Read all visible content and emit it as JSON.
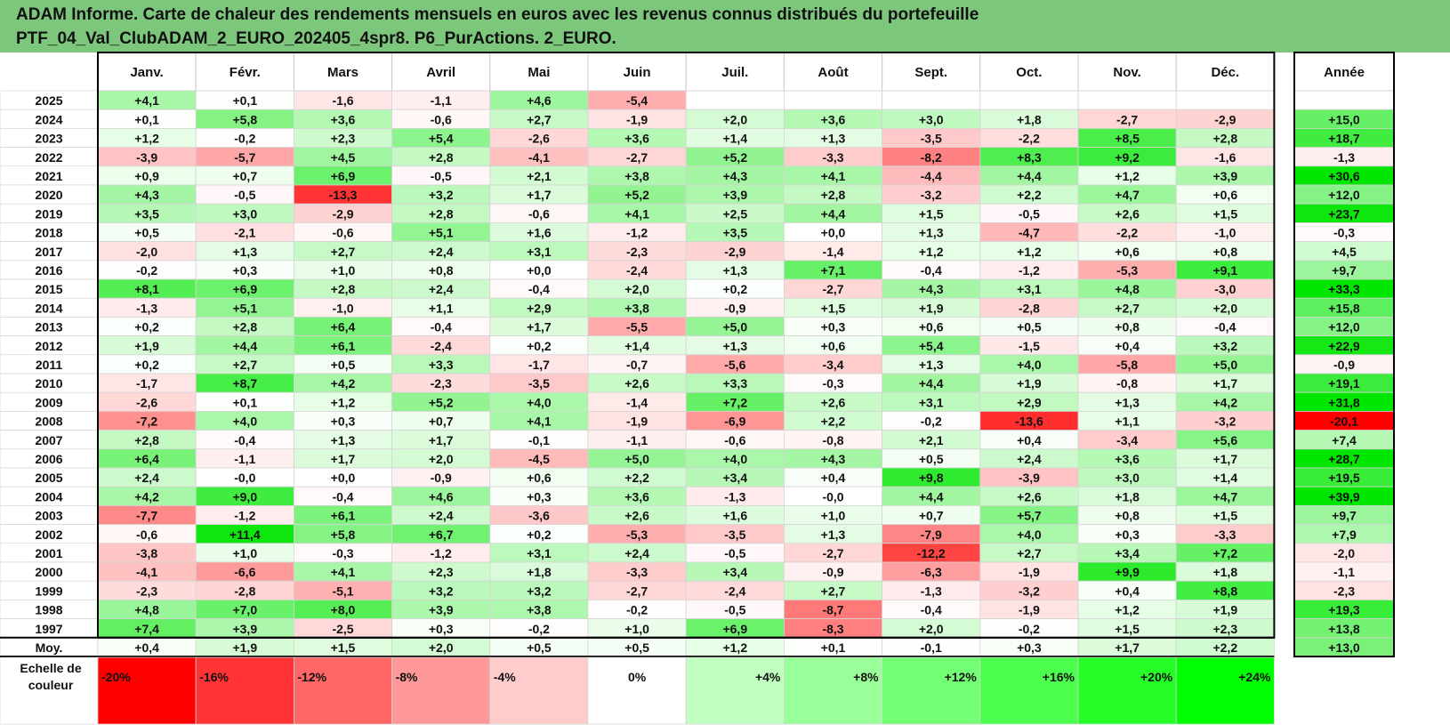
{
  "title": {
    "line1": "ADAM Informe. Carte de chaleur des rendements mensuels en euros avec les revenus connus distribués du portefeuille",
    "line2": "PTF_04_Val_ClubADAM_2_EURO_202405_4spr8. P6_PurActions. 2_EURO."
  },
  "chart_data": {
    "type": "heatmap",
    "months": [
      "Janv.",
      "Févr.",
      "Mars",
      "Avril",
      "Mai",
      "Juin",
      "Juil.",
      "Août",
      "Sept.",
      "Oct.",
      "Nov.",
      "Déc."
    ],
    "year_header": "Année",
    "years": [
      "2025",
      "2024",
      "2023",
      "2022",
      "2021",
      "2020",
      "2019",
      "2018",
      "2017",
      "2016",
      "2015",
      "2014",
      "2013",
      "2012",
      "2011",
      "2010",
      "2009",
      "2008",
      "2007",
      "2006",
      "2005",
      "2004",
      "2003",
      "2002",
      "2001",
      "2000",
      "1999",
      "1998",
      "1997"
    ],
    "monthly": [
      [
        "+4,1",
        "+0,1",
        "-1,6",
        "-1,1",
        "+4,6",
        "-5,4",
        "",
        "",
        "",
        "",
        "",
        ""
      ],
      [
        "+0,1",
        "+5,8",
        "+3,6",
        "-0,6",
        "+2,7",
        "-1,9",
        "+2,0",
        "+3,6",
        "+3,0",
        "+1,8",
        "-2,7",
        "-2,9"
      ],
      [
        "+1,2",
        "-0,2",
        "+2,3",
        "+5,4",
        "-2,6",
        "+3,6",
        "+1,4",
        "+1,3",
        "-3,5",
        "-2,2",
        "+8,5",
        "+2,8"
      ],
      [
        "-3,9",
        "-5,7",
        "+4,5",
        "+2,8",
        "-4,1",
        "-2,7",
        "+5,2",
        "-3,3",
        "-8,2",
        "+8,3",
        "+9,2",
        "-1,6"
      ],
      [
        "+0,9",
        "+0,7",
        "+6,9",
        "-0,5",
        "+2,1",
        "+3,8",
        "+4,3",
        "+4,1",
        "-4,4",
        "+4,4",
        "+1,2",
        "+3,9"
      ],
      [
        "+4,3",
        "-0,5",
        "-13,3",
        "+3,2",
        "+1,7",
        "+5,2",
        "+3,9",
        "+2,8",
        "-3,2",
        "+2,2",
        "+4,7",
        "+0,6"
      ],
      [
        "+3,5",
        "+3,0",
        "-2,9",
        "+2,8",
        "-0,6",
        "+4,1",
        "+2,5",
        "+4,4",
        "+1,5",
        "-0,5",
        "+2,6",
        "+1,5"
      ],
      [
        "+0,5",
        "-2,1",
        "-0,6",
        "+5,1",
        "+1,6",
        "-1,2",
        "+3,5",
        "+0,0",
        "+1,3",
        "-4,7",
        "-2,2",
        "-1,0"
      ],
      [
        "-2,0",
        "+1,3",
        "+2,7",
        "+2,4",
        "+3,1",
        "-2,3",
        "-2,9",
        "-1,4",
        "+1,2",
        "+1,2",
        "+0,6",
        "+0,8"
      ],
      [
        "-0,2",
        "+0,3",
        "+1,0",
        "+0,8",
        "+0,0",
        "-2,4",
        "+1,3",
        "+7,1",
        "-0,4",
        "-1,2",
        "-5,3",
        "+9,1"
      ],
      [
        "+8,1",
        "+6,9",
        "+2,8",
        "+2,4",
        "-0,4",
        "+2,0",
        "+0,2",
        "-2,7",
        "+4,3",
        "+3,1",
        "+4,8",
        "-3,0"
      ],
      [
        "-1,3",
        "+5,1",
        "-1,0",
        "+1,1",
        "+2,9",
        "+3,8",
        "-0,9",
        "+1,5",
        "+1,9",
        "-2,8",
        "+2,7",
        "+2,0"
      ],
      [
        "+0,2",
        "+2,8",
        "+6,4",
        "-0,4",
        "+1,7",
        "-5,5",
        "+5,0",
        "+0,3",
        "+0,6",
        "+0,5",
        "+0,8",
        "-0,4"
      ],
      [
        "+1,9",
        "+4,4",
        "+6,1",
        "-2,4",
        "+0,2",
        "+1,4",
        "+1,3",
        "+0,6",
        "+5,4",
        "-1,5",
        "+0,4",
        "+3,2"
      ],
      [
        "+0,2",
        "+2,7",
        "+0,5",
        "+3,3",
        "-1,7",
        "-0,7",
        "-5,6",
        "-3,4",
        "+1,3",
        "+4,0",
        "-5,8",
        "+5,0"
      ],
      [
        "-1,7",
        "+8,7",
        "+4,2",
        "-2,3",
        "-3,5",
        "+2,6",
        "+3,3",
        "-0,3",
        "+4,4",
        "+1,9",
        "-0,8",
        "+1,7"
      ],
      [
        "-2,6",
        "+0,1",
        "+1,2",
        "+5,2",
        "+4,0",
        "-1,4",
        "+7,2",
        "+2,6",
        "+3,1",
        "+2,9",
        "+1,3",
        "+4,2"
      ],
      [
        "-7,2",
        "+4,0",
        "+0,3",
        "+0,7",
        "+4,1",
        "-1,9",
        "-6,9",
        "+2,2",
        "-0,2",
        "-13,6",
        "+1,1",
        "-3,2"
      ],
      [
        "+2,8",
        "-0,4",
        "+1,3",
        "+1,7",
        "-0,1",
        "-1,1",
        "-0,6",
        "-0,8",
        "+2,1",
        "+0,4",
        "-3,4",
        "+5,6"
      ],
      [
        "+6,4",
        "-1,1",
        "+1,7",
        "+2,0",
        "-4,5",
        "+5,0",
        "+4,0",
        "+4,3",
        "+0,5",
        "+2,4",
        "+3,6",
        "+1,7"
      ],
      [
        "+2,4",
        "-0,0",
        "+0,0",
        "-0,9",
        "+0,6",
        "+2,2",
        "+3,4",
        "+0,4",
        "+9,8",
        "-3,9",
        "+3,0",
        "+1,4"
      ],
      [
        "+4,2",
        "+9,0",
        "-0,4",
        "+4,6",
        "+0,3",
        "+3,6",
        "-1,3",
        "-0,0",
        "+4,4",
        "+2,6",
        "+1,8",
        "+4,7"
      ],
      [
        "-7,7",
        "-1,2",
        "+6,1",
        "+2,4",
        "-3,6",
        "+2,6",
        "+1,6",
        "+1,0",
        "+0,7",
        "+5,7",
        "+0,8",
        "+1,5"
      ],
      [
        "-0,6",
        "+11,4",
        "+5,8",
        "+6,7",
        "+0,2",
        "-5,3",
        "-3,5",
        "+1,3",
        "-7,9",
        "+4,0",
        "+0,3",
        "-3,3"
      ],
      [
        "-3,8",
        "+1,0",
        "-0,3",
        "-1,2",
        "+3,1",
        "+2,4",
        "-0,5",
        "-2,7",
        "-12,2",
        "+2,7",
        "+3,4",
        "+7,2"
      ],
      [
        "-4,1",
        "-6,6",
        "+4,1",
        "+2,3",
        "+1,8",
        "-3,3",
        "+3,4",
        "-0,9",
        "-6,3",
        "-1,9",
        "+9,9",
        "+1,8"
      ],
      [
        "-2,3",
        "-2,8",
        "-5,1",
        "+3,2",
        "+3,2",
        "-2,7",
        "-2,4",
        "+2,7",
        "-1,3",
        "-3,2",
        "+0,4",
        "+8,8"
      ],
      [
        "+4,8",
        "+7,0",
        "+8,0",
        "+3,9",
        "+3,8",
        "-0,2",
        "-0,5",
        "-8,7",
        "-0,4",
        "-1,9",
        "+1,2",
        "+1,9"
      ],
      [
        "+7,4",
        "+3,9",
        "-2,5",
        "+0,3",
        "-0,2",
        "+1,0",
        "+6,9",
        "-8,3",
        "+2,0",
        "-0,2",
        "+1,5",
        "+2,3"
      ]
    ],
    "annual": [
      "",
      "+15,0",
      "+18,7",
      "-1,3",
      "+30,6",
      "+12,0",
      "+23,7",
      "-0,3",
      "+4,5",
      "+9,7",
      "+33,3",
      "+15,8",
      "+12,0",
      "+22,9",
      "-0,9",
      "+19,1",
      "+31,8",
      "-20,1",
      "+7,4",
      "+28,7",
      "+19,5",
      "+39,9",
      "+9,7",
      "+7,9",
      "-2,0",
      "-1,1",
      "-2,3",
      "+19,3",
      "+13,8"
    ],
    "avg_label": "Moy.",
    "avg_monthly": [
      "+0,4",
      "+1,9",
      "+1,5",
      "+2,0",
      "+0,5",
      "+0,5",
      "+1,2",
      "+0,1",
      "-0,1",
      "+0,3",
      "+1,7",
      "+2,2"
    ],
    "avg_annual": "+13,0",
    "scale_label": [
      "Echelle de",
      "couleur"
    ],
    "scale_values": [
      "-20%",
      "-16%",
      "-12%",
      "-8%",
      "-4%",
      "0%",
      "+4%",
      "+8%",
      "+12%",
      "+16%",
      "+20%",
      "+24%"
    ],
    "scale_numeric": [
      -20,
      -16,
      -12,
      -8,
      -4,
      0,
      4,
      8,
      12,
      16,
      20,
      24
    ],
    "colors": {
      "title_band": "#7dc77d",
      "negative_max": "#ff0000",
      "positive_max": "#00e600",
      "neutral": "#ffffff"
    }
  }
}
